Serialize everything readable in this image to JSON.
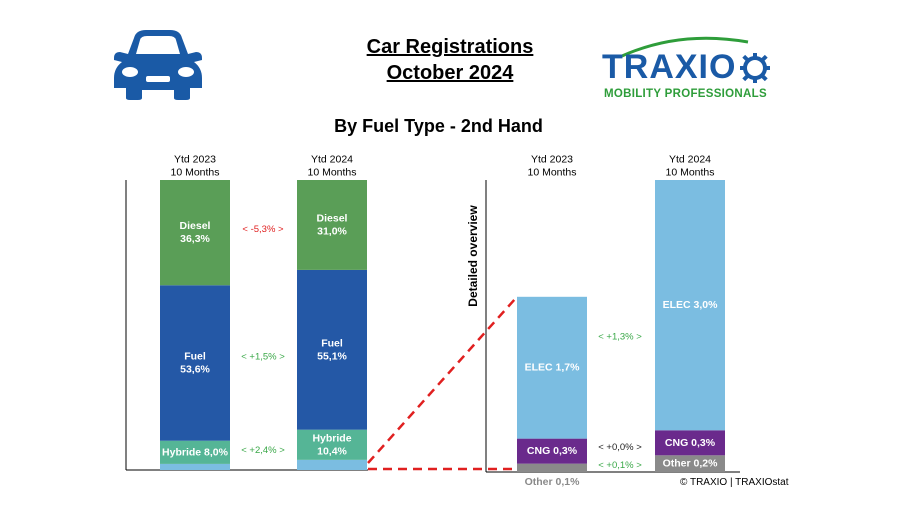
{
  "header": {
    "title_line1": "Car Registrations",
    "title_line2": "October 2024",
    "subtitle": "By Fuel Type - 2nd Hand",
    "car_icon": "car-icon",
    "logo_word": "TRAXIO",
    "logo_tagline": "MOBILITY PROFESSIONALS"
  },
  "colors": {
    "diesel": "#5a9e57",
    "fuel": "#2458a6",
    "hybride": "#55b596",
    "elec": "#7bbde1",
    "cng": "#6a2a8c",
    "other": "#8a8a8a",
    "negative": "#e02020",
    "positive": "#3aa848",
    "neutral": "#222222",
    "brand_blue": "#1a5aa6",
    "brand_green": "#2e9d3a"
  },
  "chart_data": [
    {
      "type": "bar",
      "stacked": true,
      "categories": [
        "Ytd 2023\n10 Months",
        "Ytd 2024\n10 Months"
      ],
      "series": [
        {
          "name": "Hybride",
          "values": [
            8.0,
            10.4
          ],
          "labels": [
            "Hybride 8,0%",
            "Hybride\n10,4%"
          ]
        },
        {
          "name": "Fuel",
          "values": [
            53.6,
            55.1
          ],
          "labels": [
            "Fuel\n53,6%",
            "Fuel\n55,1%"
          ]
        },
        {
          "name": "Diesel",
          "values": [
            36.3,
            31.0
          ],
          "labels": [
            "Diesel\n36,3%",
            "Diesel\n31,0%"
          ]
        }
      ],
      "deltas": [
        {
          "series": "Diesel",
          "text": "<   -5,3%   >",
          "sign": "negative"
        },
        {
          "series": "Fuel",
          "text": "<  +1,5%  >",
          "sign": "positive"
        },
        {
          "series": "Hybride",
          "text": "<  +2,4%  >",
          "sign": "positive"
        }
      ]
    },
    {
      "type": "bar",
      "stacked": true,
      "axis_label": "Detailed overview",
      "categories": [
        "Ytd 2023\n10 Months",
        "Ytd 2024\n10 Months"
      ],
      "series": [
        {
          "name": "Other",
          "values": [
            0.1,
            0.2
          ],
          "labels": [
            "Other 0,1%",
            "Other 0,2%"
          ]
        },
        {
          "name": "CNG",
          "values": [
            0.3,
            0.3
          ],
          "labels": [
            "CNG 0,3%",
            "CNG 0,3%"
          ]
        },
        {
          "name": "ELEC",
          "values": [
            1.7,
            3.0
          ],
          "labels": [
            "ELEC 1,7%",
            "ELEC 3,0%"
          ]
        }
      ],
      "deltas": [
        {
          "series": "ELEC",
          "text": "<   +1,3%   >",
          "sign": "positive"
        },
        {
          "series": "CNG",
          "text": "<  +0,0%  >",
          "sign": "neutral"
        },
        {
          "series": "Other",
          "text": "<  +0,1%  >",
          "sign": "positive"
        }
      ]
    }
  ],
  "footer": {
    "copyright": "© TRAXIO | TRAXIOstat"
  }
}
